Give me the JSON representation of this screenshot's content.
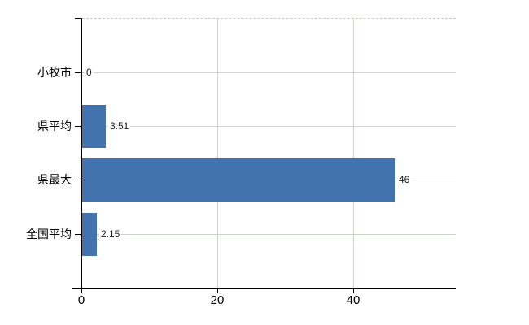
{
  "chart_data": {
    "type": "bar",
    "orientation": "horizontal",
    "title": "",
    "xlabel": "",
    "ylabel": "",
    "categories": [
      "小牧市",
      "県平均",
      "県最大",
      "全国平均"
    ],
    "values": [
      0,
      3.51,
      46,
      2.15
    ],
    "value_labels": [
      "0",
      "3.51",
      "46",
      "2.15"
    ],
    "x_ticks": [
      0,
      20,
      40
    ],
    "x_tick_labels": [
      "0",
      "20",
      "40"
    ],
    "xlim": [
      0,
      55
    ],
    "grid": true,
    "legend": false,
    "colors": {
      "bar": "#4373ae",
      "grid": "#ccd4ca",
      "grid_dashed_top": "#c6cec4",
      "axis": "#000000",
      "text": "#000000",
      "value_text": "#1a1a1a",
      "background": "#ffffff"
    }
  }
}
